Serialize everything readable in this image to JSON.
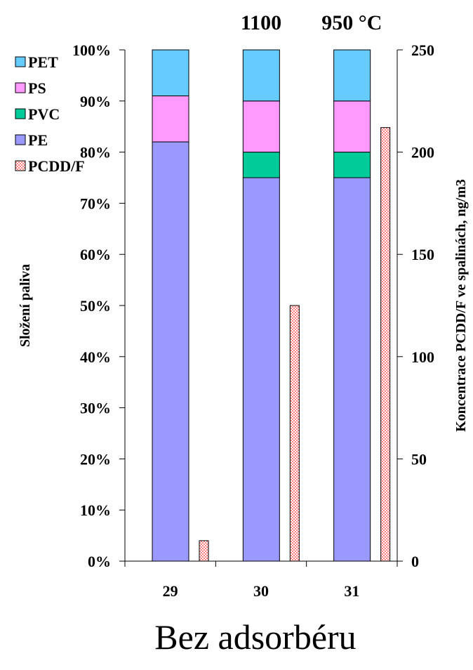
{
  "chart_data": {
    "type": "bar",
    "categories": [
      "29",
      "30",
      "31"
    ],
    "top_labels": [
      "",
      "1100",
      "950 °C"
    ],
    "ylabel": "Složení paliva",
    "y2label": "Koncentrace PCDD/F ve spalinách, ng/m3",
    "ylim": [
      0,
      100
    ],
    "y2lim": [
      0,
      250
    ],
    "y_ticks": [
      "0%",
      "10%",
      "20%",
      "30%",
      "40%",
      "50%",
      "60%",
      "70%",
      "80%",
      "90%",
      "100%"
    ],
    "y2_ticks": [
      "0",
      "50",
      "100",
      "150",
      "200",
      "250"
    ],
    "stacked_series": [
      {
        "name": "PE",
        "values": [
          82,
          75,
          75
        ],
        "color": "#9999ff"
      },
      {
        "name": "PVC",
        "values": [
          0,
          5,
          5
        ],
        "color": "#00cc99"
      },
      {
        "name": "PS",
        "values": [
          9,
          10,
          10
        ],
        "color": "#ff99ff"
      },
      {
        "name": "PET",
        "values": [
          9,
          10,
          10
        ],
        "color": "#66ccff"
      }
    ],
    "secondary_series": {
      "name": "PCDD/F",
      "axis": "right",
      "values": [
        10,
        125,
        212
      ],
      "color": "#ff9999"
    },
    "legend": {
      "placement": "top-left",
      "entries": [
        {
          "name": "PET",
          "color": "#66ccff"
        },
        {
          "name": "PS",
          "color": "#ff99ff"
        },
        {
          "name": "PVC",
          "color": "#00cc99"
        },
        {
          "name": "PE",
          "color": "#9999ff"
        },
        {
          "name": "PCDD/F",
          "color": "#ff9999"
        }
      ]
    },
    "caption": "Bez adsorbéru"
  }
}
